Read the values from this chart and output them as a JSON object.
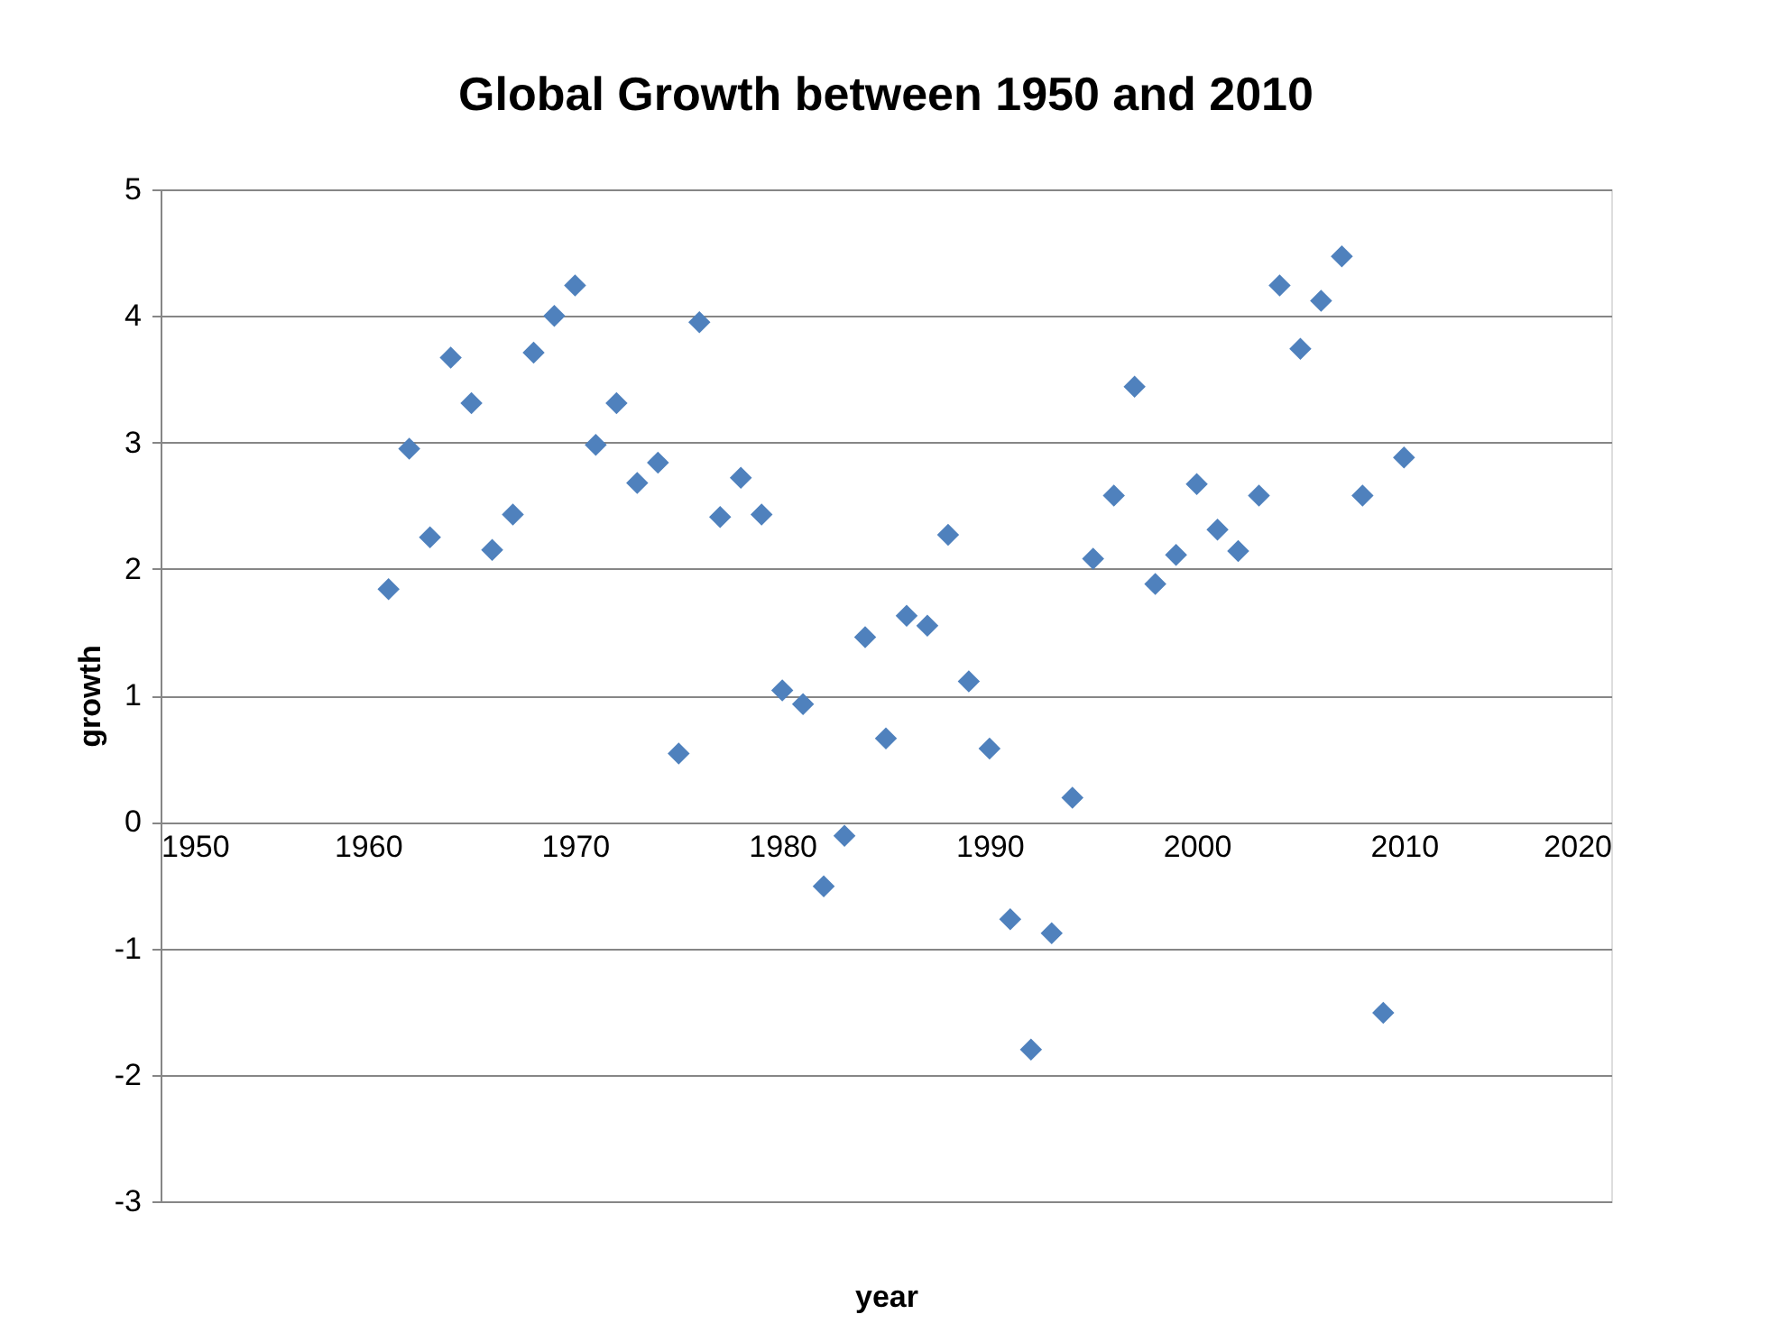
{
  "chart_data": {
    "type": "scatter",
    "title": "Global Growth between 1950 and 2010",
    "xlabel": "year",
    "ylabel": "growth",
    "x": [
      1961,
      1962,
      1963,
      1964,
      1965,
      1966,
      1967,
      1968,
      1969,
      1970,
      1971,
      1972,
      1973,
      1974,
      1975,
      1976,
      1977,
      1978,
      1979,
      1980,
      1981,
      1982,
      1983,
      1984,
      1985,
      1986,
      1987,
      1988,
      1989,
      1990,
      1991,
      1992,
      1993,
      1994,
      1995,
      1996,
      1997,
      1998,
      1999,
      2000,
      2001,
      2002,
      2003,
      2004,
      2005,
      2006,
      2007,
      2008,
      2009,
      2010
    ],
    "series": [
      {
        "color": "#4f81bd",
        "values": [
          1.84,
          2.95,
          2.25,
          3.67,
          3.31,
          2.15,
          2.43,
          3.71,
          4.0,
          4.24,
          2.98,
          3.31,
          2.68,
          2.84,
          0.54,
          3.95,
          2.41,
          2.72,
          2.43,
          1.04,
          0.93,
          -0.51,
          -0.11,
          1.46,
          0.66,
          1.63,
          1.55,
          2.27,
          1.11,
          0.58,
          -0.77,
          -1.8,
          -0.88,
          0.19,
          2.08,
          2.58,
          3.44,
          1.88,
          2.11,
          2.67,
          2.31,
          2.14,
          2.58,
          4.24,
          3.74,
          4.12,
          4.47,
          2.58,
          -1.51,
          2.88
        ]
      }
    ],
    "xlim": [
      1950,
      2020
    ],
    "xticks": [
      1950,
      1960,
      1970,
      1980,
      1990,
      2000,
      2010,
      2020
    ],
    "ylim": [
      -3,
      5
    ],
    "yticks": [
      -3,
      -2,
      -1,
      0,
      1,
      2,
      3,
      4,
      5
    ],
    "grid": "y",
    "marker": "diamond"
  }
}
